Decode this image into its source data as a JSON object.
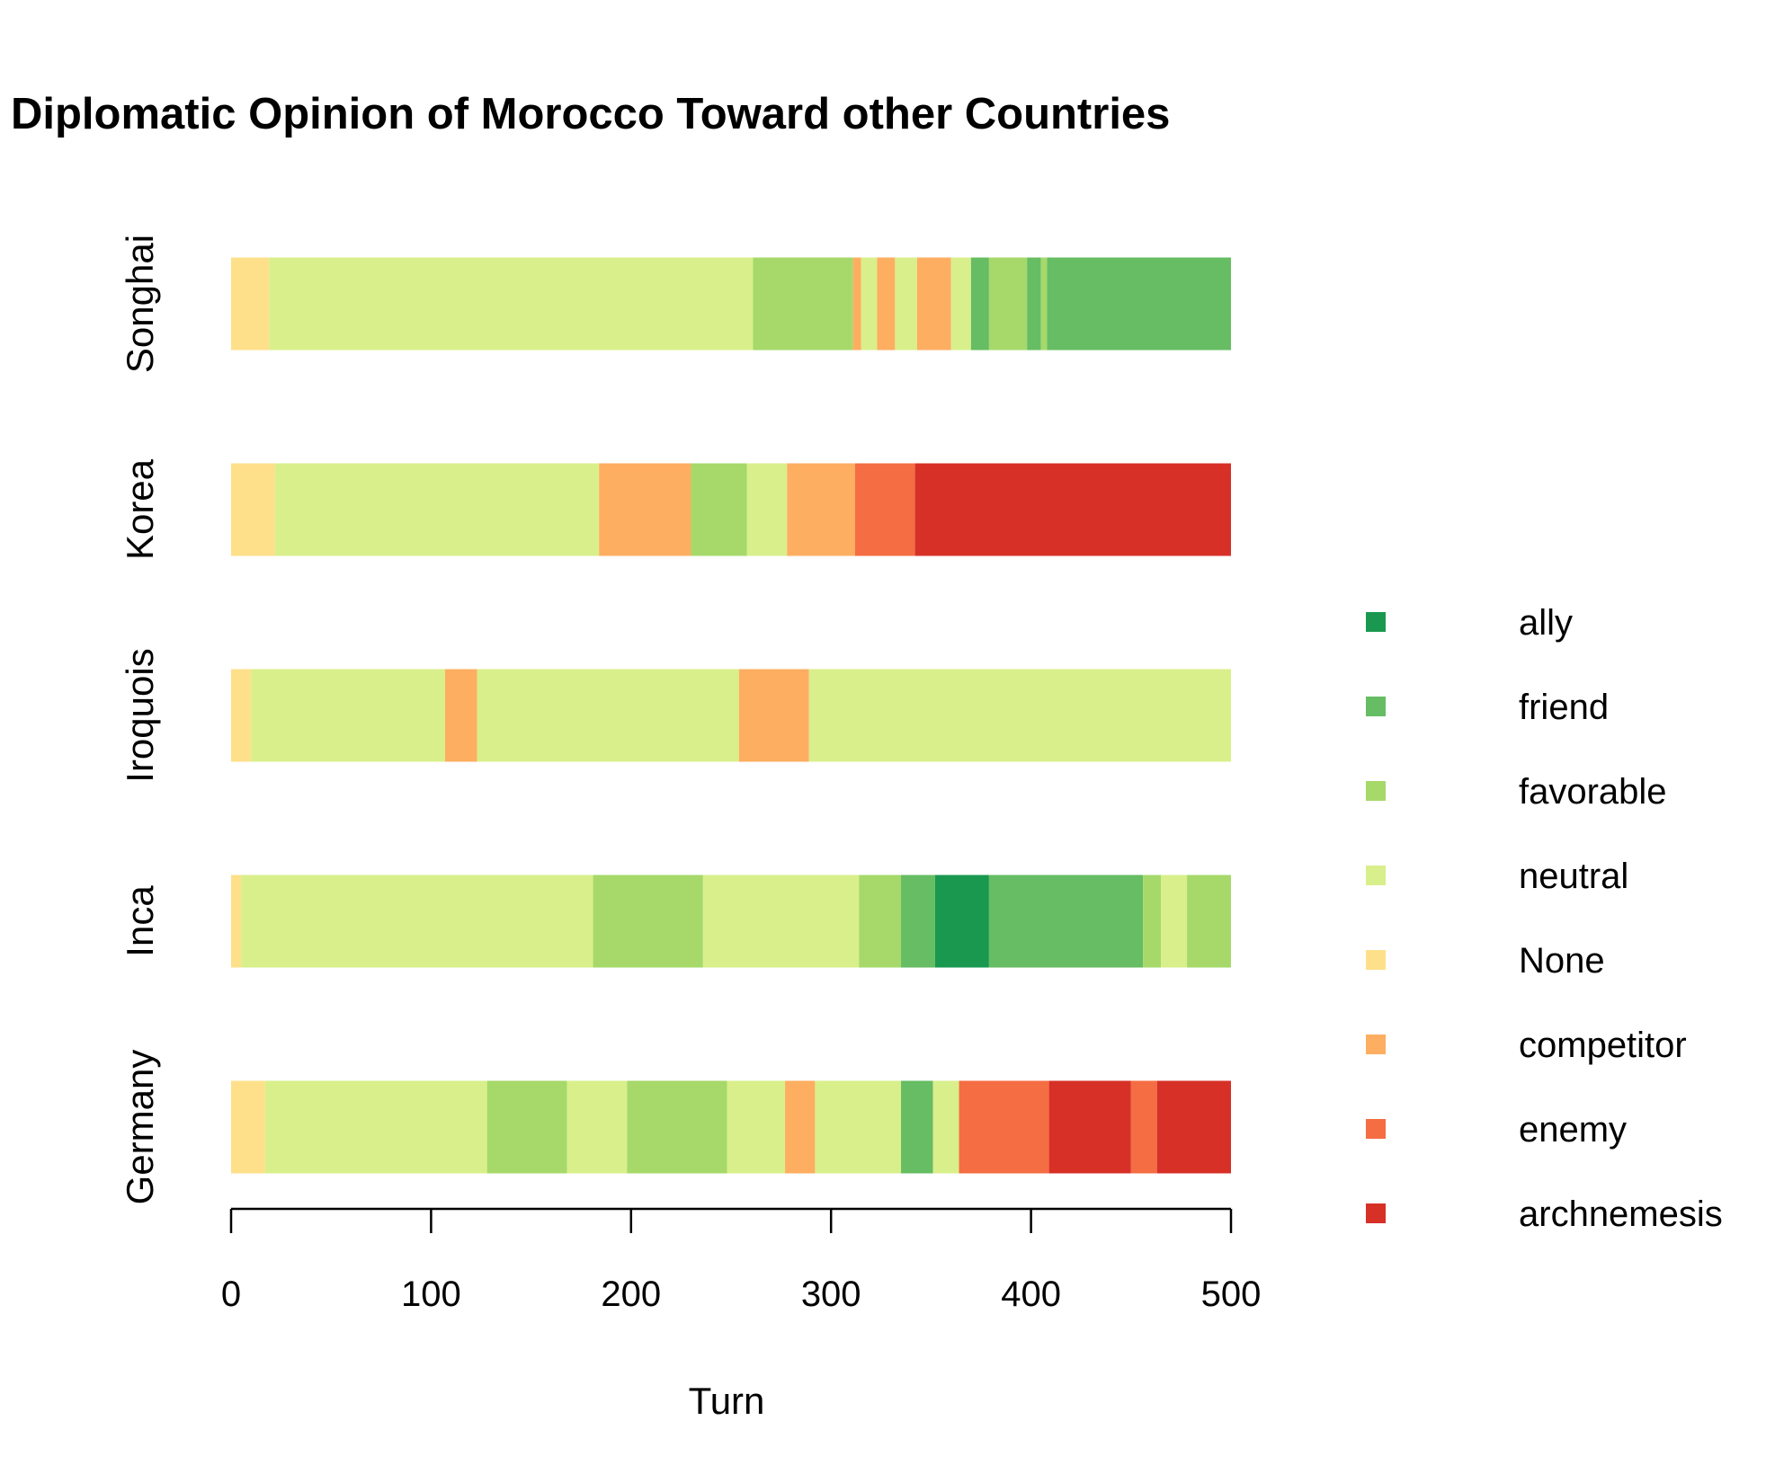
{
  "chart_data": {
    "type": "bar",
    "orientation": "horizontal",
    "stacked": true,
    "title": "Diplomatic Opinion of Morocco Toward other Countries",
    "xlabel": "Turn",
    "ylabel": "",
    "xlim": [
      0,
      500
    ],
    "xticks": [
      0,
      100,
      200,
      300,
      400,
      500
    ],
    "grid": false,
    "legend_position": "right",
    "categories": [
      "Songhai",
      "Korea",
      "Iroquois",
      "Inca",
      "Germany"
    ],
    "states": [
      {
        "key": "ally",
        "label": "ally",
        "color": "#1a9850"
      },
      {
        "key": "friend",
        "label": "friend",
        "color": "#66bd63"
      },
      {
        "key": "favorable",
        "label": "favorable",
        "color": "#a6d96a"
      },
      {
        "key": "neutral",
        "label": "neutral",
        "color": "#d9ef8b"
      },
      {
        "key": "none",
        "label": "None",
        "color": "#fee08b"
      },
      {
        "key": "competitor",
        "label": "competitor",
        "color": "#fdae61"
      },
      {
        "key": "enemy",
        "label": "enemy",
        "color": "#f46d43"
      },
      {
        "key": "archnemesis",
        "label": "archnemesis",
        "color": "#d73027"
      }
    ],
    "bars": [
      {
        "country": "Songhai",
        "segments": [
          {
            "state": "none",
            "start": 0,
            "end": 19
          },
          {
            "state": "neutral",
            "start": 19,
            "end": 261
          },
          {
            "state": "favorable",
            "start": 261,
            "end": 311
          },
          {
            "state": "competitor",
            "start": 311,
            "end": 315
          },
          {
            "state": "neutral",
            "start": 315,
            "end": 323
          },
          {
            "state": "competitor",
            "start": 323,
            "end": 332
          },
          {
            "state": "neutral",
            "start": 332,
            "end": 343
          },
          {
            "state": "competitor",
            "start": 343,
            "end": 360
          },
          {
            "state": "neutral",
            "start": 360,
            "end": 370
          },
          {
            "state": "friend",
            "start": 370,
            "end": 379
          },
          {
            "state": "favorable",
            "start": 379,
            "end": 398
          },
          {
            "state": "friend",
            "start": 398,
            "end": 405
          },
          {
            "state": "favorable",
            "start": 405,
            "end": 408
          },
          {
            "state": "friend",
            "start": 408,
            "end": 500
          }
        ]
      },
      {
        "country": "Korea",
        "segments": [
          {
            "state": "none",
            "start": 0,
            "end": 22
          },
          {
            "state": "neutral",
            "start": 22,
            "end": 184
          },
          {
            "state": "competitor",
            "start": 184,
            "end": 230
          },
          {
            "state": "favorable",
            "start": 230,
            "end": 258
          },
          {
            "state": "neutral",
            "start": 258,
            "end": 278
          },
          {
            "state": "competitor",
            "start": 278,
            "end": 312
          },
          {
            "state": "enemy",
            "start": 312,
            "end": 342
          },
          {
            "state": "archnemesis",
            "start": 342,
            "end": 500
          }
        ]
      },
      {
        "country": "Iroquois",
        "segments": [
          {
            "state": "none",
            "start": 0,
            "end": 10
          },
          {
            "state": "neutral",
            "start": 10,
            "end": 107
          },
          {
            "state": "competitor",
            "start": 107,
            "end": 123
          },
          {
            "state": "neutral",
            "start": 123,
            "end": 254
          },
          {
            "state": "competitor",
            "start": 254,
            "end": 289
          },
          {
            "state": "neutral",
            "start": 289,
            "end": 500
          }
        ]
      },
      {
        "country": "Inca",
        "segments": [
          {
            "state": "none",
            "start": 0,
            "end": 5
          },
          {
            "state": "neutral",
            "start": 5,
            "end": 181
          },
          {
            "state": "favorable",
            "start": 181,
            "end": 236
          },
          {
            "state": "neutral",
            "start": 236,
            "end": 314
          },
          {
            "state": "favorable",
            "start": 314,
            "end": 335
          },
          {
            "state": "friend",
            "start": 335,
            "end": 352
          },
          {
            "state": "ally",
            "start": 352,
            "end": 379
          },
          {
            "state": "friend",
            "start": 379,
            "end": 456
          },
          {
            "state": "favorable",
            "start": 456,
            "end": 465
          },
          {
            "state": "neutral",
            "start": 465,
            "end": 478
          },
          {
            "state": "favorable",
            "start": 478,
            "end": 500
          }
        ]
      },
      {
        "country": "Germany",
        "segments": [
          {
            "state": "none",
            "start": 0,
            "end": 17
          },
          {
            "state": "neutral",
            "start": 17,
            "end": 128
          },
          {
            "state": "favorable",
            "start": 128,
            "end": 168
          },
          {
            "state": "neutral",
            "start": 168,
            "end": 198
          },
          {
            "state": "favorable",
            "start": 198,
            "end": 248
          },
          {
            "state": "neutral",
            "start": 248,
            "end": 277
          },
          {
            "state": "competitor",
            "start": 277,
            "end": 292
          },
          {
            "state": "neutral",
            "start": 292,
            "end": 335
          },
          {
            "state": "friend",
            "start": 335,
            "end": 351
          },
          {
            "state": "neutral",
            "start": 351,
            "end": 364
          },
          {
            "state": "enemy",
            "start": 364,
            "end": 409
          },
          {
            "state": "archnemesis",
            "start": 409,
            "end": 450
          },
          {
            "state": "enemy",
            "start": 450,
            "end": 463
          },
          {
            "state": "archnemesis",
            "start": 463,
            "end": 500
          }
        ]
      }
    ]
  }
}
